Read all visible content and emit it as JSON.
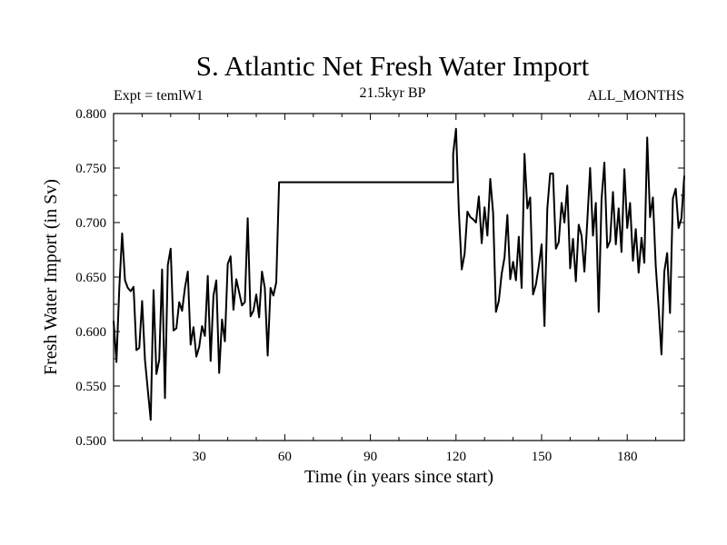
{
  "chart_data": {
    "type": "line",
    "title": "S. Atlantic Net Fresh Water Import",
    "subtitle_left": "Expt = temlW1",
    "subtitle_center": "21.5kyr BP",
    "subtitle_right": "ALL_MONTHS",
    "xlabel": "Time (in years since start)",
    "ylabel": "Fresh Water Import (in Sv)",
    "xlim": [
      0,
      200
    ],
    "ylim": [
      0.5,
      0.8
    ],
    "x_ticks": [
      30,
      60,
      90,
      120,
      150,
      180
    ],
    "x_tick_labels": [
      "30",
      "60",
      "90",
      "120",
      "150",
      "180"
    ],
    "y_ticks": [
      0.5,
      0.55,
      0.6,
      0.65,
      0.7,
      0.75,
      0.8
    ],
    "y_tick_labels": [
      "0.500",
      "0.550",
      "0.600",
      "0.650",
      "0.700",
      "0.750",
      "0.800"
    ],
    "series": [
      {
        "name": "fresh_water_import",
        "x": [
          0,
          1,
          2,
          3,
          4,
          5,
          6,
          7,
          8,
          9,
          10,
          11,
          12,
          13,
          14,
          15,
          16,
          17,
          18,
          19,
          20,
          21,
          22,
          23,
          24,
          25,
          26,
          27,
          28,
          29,
          30,
          31,
          32,
          33,
          34,
          35,
          36,
          37,
          38,
          39,
          40,
          41,
          42,
          43,
          44,
          45,
          46,
          47,
          48,
          49,
          50,
          51,
          52,
          53,
          54,
          55,
          56,
          57,
          58,
          59,
          60,
          119,
          119,
          120,
          121,
          122,
          123,
          124,
          125,
          126,
          127,
          128,
          129,
          130,
          131,
          132,
          133,
          134,
          135,
          136,
          137,
          138,
          139,
          140,
          141,
          142,
          143,
          144,
          145,
          146,
          147,
          148,
          149,
          150,
          151,
          152,
          153,
          154,
          155,
          156,
          157,
          158,
          159,
          160,
          161,
          162,
          163,
          164,
          165,
          166,
          167,
          168,
          169,
          170,
          171,
          172,
          173,
          174,
          175,
          176,
          177,
          178,
          179,
          180,
          181,
          182,
          183,
          184,
          185,
          186,
          187,
          188,
          189,
          190,
          191,
          192,
          193,
          194,
          195,
          196,
          197,
          198,
          199,
          200
        ],
        "values": [
          0.61,
          0.572,
          0.64,
          0.69,
          0.647,
          0.64,
          0.637,
          0.641,
          0.583,
          0.585,
          0.628,
          0.574,
          0.546,
          0.519,
          0.638,
          0.561,
          0.574,
          0.657,
          0.539,
          0.661,
          0.676,
          0.601,
          0.603,
          0.627,
          0.619,
          0.64,
          0.655,
          0.588,
          0.604,
          0.577,
          0.586,
          0.605,
          0.596,
          0.651,
          0.573,
          0.633,
          0.647,
          0.562,
          0.611,
          0.591,
          0.662,
          0.669,
          0.62,
          0.648,
          0.636,
          0.624,
          0.627,
          0.704,
          0.614,
          0.619,
          0.634,
          0.613,
          0.655,
          0.64,
          0.578,
          0.64,
          0.633,
          0.645,
          0.737,
          0.737,
          0.737,
          0.737,
          0.763,
          0.786,
          0.71,
          0.657,
          0.671,
          0.71,
          0.705,
          0.703,
          0.7,
          0.724,
          0.681,
          0.714,
          0.688,
          0.74,
          0.709,
          0.618,
          0.628,
          0.653,
          0.668,
          0.707,
          0.648,
          0.664,
          0.647,
          0.687,
          0.64,
          0.763,
          0.713,
          0.723,
          0.634,
          0.643,
          0.66,
          0.68,
          0.605,
          0.713,
          0.745,
          0.745,
          0.676,
          0.682,
          0.718,
          0.7,
          0.734,
          0.658,
          0.685,
          0.646,
          0.698,
          0.688,
          0.655,
          0.701,
          0.75,
          0.688,
          0.718,
          0.618,
          0.721,
          0.755,
          0.677,
          0.683,
          0.728,
          0.68,
          0.713,
          0.673,
          0.749,
          0.695,
          0.718,
          0.665,
          0.694,
          0.654,
          0.686,
          0.663,
          0.778,
          0.705,
          0.723,
          0.66,
          0.622,
          0.579,
          0.655,
          0.672,
          0.617,
          0.722,
          0.731,
          0.695,
          0.704,
          0.743
        ]
      }
    ]
  }
}
